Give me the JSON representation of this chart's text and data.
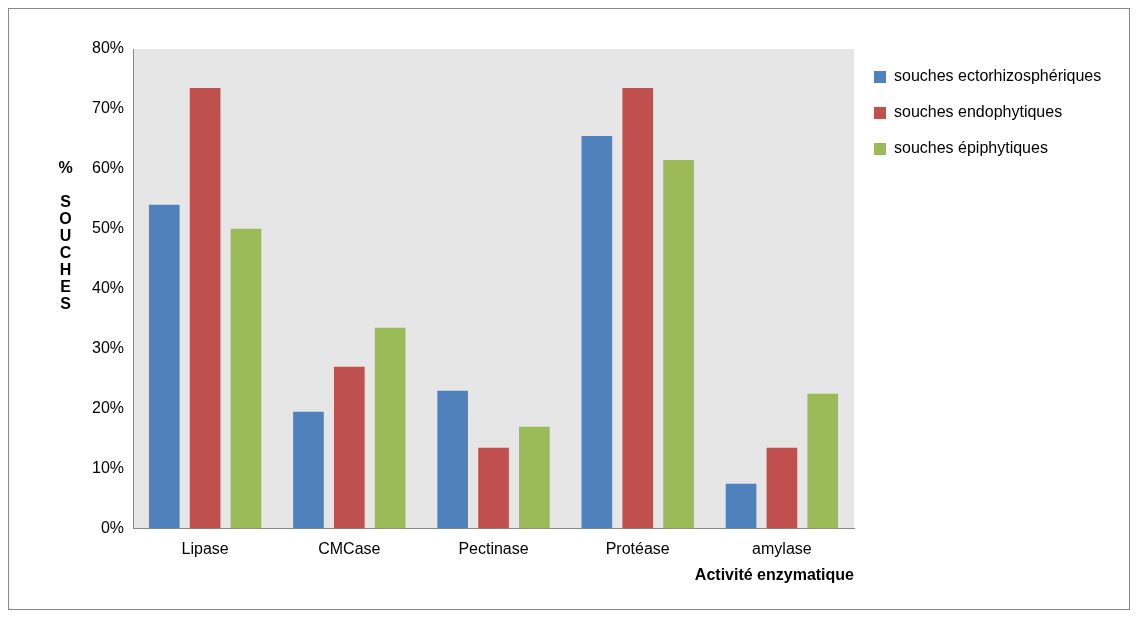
{
  "chart_data": {
    "type": "bar",
    "xlabel": "Activité enzymatique",
    "ylabel": "% SOUCHES",
    "categories": [
      "Lipase",
      "CMCase",
      "Pectinase",
      "Protéase",
      "amylase"
    ],
    "series": [
      {
        "name": "souches ectorhizosphériques",
        "color": "#4f81bd",
        "values": [
          54,
          19.5,
          23,
          65.5,
          7.5
        ]
      },
      {
        "name": "souches endophytiques",
        "color": "#c0504d",
        "values": [
          73.5,
          27,
          13.5,
          73.5,
          13.5
        ]
      },
      {
        "name": "souches épiphytiques",
        "color": "#9bbb59",
        "values": [
          50,
          33.5,
          17,
          61.5,
          22.5
        ]
      }
    ],
    "ylim": [
      0,
      80
    ],
    "yticks": [
      {
        "value": 0,
        "label": "0%"
      },
      {
        "value": 10,
        "label": "10%"
      },
      {
        "value": 20,
        "label": "20%"
      },
      {
        "value": 30,
        "label": "30%"
      },
      {
        "value": 40,
        "label": "40%"
      },
      {
        "value": 50,
        "label": "50%"
      },
      {
        "value": 60,
        "label": "60%"
      },
      {
        "value": 70,
        "label": "70%"
      },
      {
        "value": 80,
        "label": "80%"
      }
    ],
    "grid": false,
    "legend": "top right"
  }
}
